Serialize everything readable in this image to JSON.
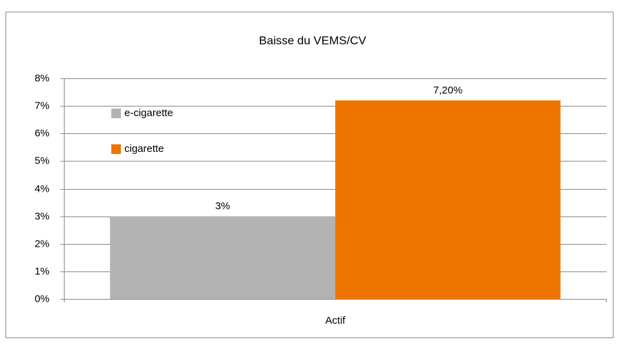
{
  "chart_data": {
    "type": "bar",
    "title": "Baisse du  VEMS/CV",
    "categories": [
      "Actif"
    ],
    "series": [
      {
        "name": "e-cigarette",
        "color": "#b3b3b3",
        "values": [
          3
        ],
        "value_labels": [
          "3%"
        ]
      },
      {
        "name": "cigarette",
        "color": "#ee7600",
        "values": [
          7.2
        ],
        "value_labels": [
          "7,20%"
        ]
      }
    ],
    "ylim": [
      0,
      8
    ],
    "yticks": [
      {
        "value": 0,
        "label": "0%"
      },
      {
        "value": 1,
        "label": "1%"
      },
      {
        "value": 2,
        "label": "2%"
      },
      {
        "value": 3,
        "label": "3%"
      },
      {
        "value": 4,
        "label": "4%"
      },
      {
        "value": 5,
        "label": "5%"
      },
      {
        "value": 6,
        "label": "6%"
      },
      {
        "value": 7,
        "label": "7%"
      },
      {
        "value": 8,
        "label": "8%"
      }
    ],
    "grid": true,
    "legend": "upper left"
  }
}
